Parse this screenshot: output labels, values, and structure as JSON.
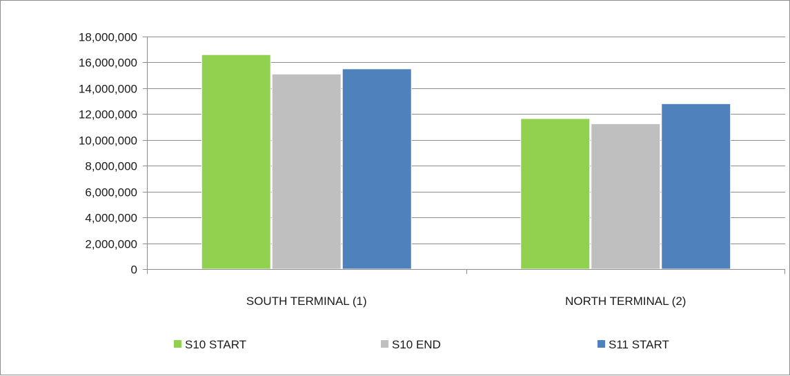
{
  "chart_data": {
    "type": "bar",
    "categories": [
      "SOUTH TERMINAL (1)",
      "NORTH TERMINAL (2)"
    ],
    "series": [
      {
        "name": "S10 START",
        "values": [
          16600000,
          11650000
        ],
        "color": "#92d050"
      },
      {
        "name": "S10 END",
        "values": [
          15100000,
          11250000
        ],
        "color": "#bfbfbf"
      },
      {
        "name": "S11 START",
        "values": [
          15500000,
          12800000
        ],
        "color": "#4f81bd"
      }
    ],
    "ylim": [
      0,
      18000000
    ],
    "yticks": [
      0,
      2000000,
      4000000,
      6000000,
      8000000,
      10000000,
      12000000,
      14000000,
      16000000,
      18000000
    ],
    "ytick_labels": [
      "0",
      "2,000,000",
      "4,000,000",
      "6,000,000",
      "8,000,000",
      "10,000,000",
      "12,000,000",
      "14,000,000",
      "16,000,000",
      "18,000,000"
    ],
    "grid": true,
    "legend_position": "bottom"
  }
}
